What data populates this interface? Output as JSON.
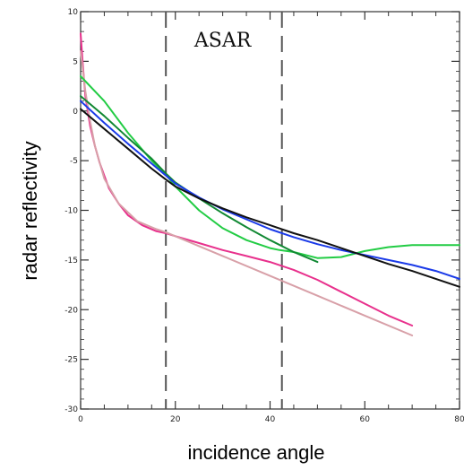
{
  "chart_data": {
    "type": "line",
    "title": "",
    "xlabel": "incidence angle",
    "ylabel": "radar reflectivity",
    "xlim": [
      0,
      80
    ],
    "ylim": [
      -30,
      10
    ],
    "grid": false,
    "xticks": [
      0,
      20,
      40,
      60,
      80
    ],
    "xtick_labels": [
      "0",
      "20",
      "40",
      "60",
      "80"
    ],
    "yticks": [
      10,
      5,
      0,
      -5,
      -10,
      -15,
      -20,
      -25,
      -30
    ],
    "ytick_labels": [
      "10",
      "5",
      "0",
      "-5",
      "-10",
      "-15",
      "-20",
      "-25",
      "-30"
    ],
    "annotations": [
      {
        "text": "ASAR",
        "x": 30,
        "y": 6.5
      }
    ],
    "vlines": [
      18,
      42.5
    ],
    "series": [
      {
        "color": "#e8308c",
        "x": [
          0,
          0.5,
          1,
          2,
          3,
          4,
          5,
          6,
          8,
          10,
          13,
          16,
          18,
          20,
          25,
          30,
          35,
          40,
          45,
          50,
          55,
          60,
          65,
          70
        ],
        "y": [
          7.8,
          4.5,
          1.5,
          -1.5,
          -3.5,
          -5.2,
          -6.5,
          -7.8,
          -9.3,
          -10.5,
          -11.5,
          -12.1,
          -12.3,
          -12.6,
          -13.3,
          -14.0,
          -14.6,
          -15.2,
          -16.0,
          -17.0,
          -18.2,
          -19.4,
          -20.6,
          -21.6
        ]
      },
      {
        "color": "#d8a0a8",
        "x": [
          0,
          1,
          2,
          3,
          5,
          8,
          12,
          16,
          18,
          25,
          30,
          40,
          50,
          60,
          70
        ],
        "y": [
          6.0,
          2.0,
          -1.0,
          -3.5,
          -6.8,
          -9.3,
          -11.1,
          -11.9,
          -12.2,
          -13.6,
          -14.6,
          -16.6,
          -18.6,
          -20.6,
          -22.6
        ]
      },
      {
        "color": "#22cc44",
        "x": [
          0,
          5,
          10,
          15,
          18,
          20,
          25,
          30,
          35,
          40,
          42,
          45,
          50,
          55,
          60,
          65,
          70,
          80
        ],
        "y": [
          3.5,
          1.0,
          -2.2,
          -5.0,
          -6.4,
          -7.6,
          -10.0,
          -11.8,
          -13.0,
          -13.8,
          -14.0,
          -14.2,
          -14.8,
          -14.7,
          -14.1,
          -13.7,
          -13.5,
          -13.5
        ]
      },
      {
        "color": "#118833",
        "x": [
          0,
          5,
          10,
          15,
          18,
          20,
          25,
          30,
          35,
          40,
          45,
          50
        ],
        "y": [
          1.5,
          -0.5,
          -2.7,
          -4.8,
          -6.3,
          -7.2,
          -8.8,
          -10.3,
          -11.7,
          -13.0,
          -14.2,
          -15.2
        ]
      },
      {
        "color": "#1a3ae8",
        "x": [
          0,
          5,
          10,
          15,
          18,
          20,
          25,
          30,
          35,
          40,
          45,
          50,
          55,
          60,
          65,
          70,
          75,
          80
        ],
        "y": [
          1.0,
          -1.2,
          -3.3,
          -5.3,
          -6.5,
          -7.3,
          -8.7,
          -9.9,
          -10.9,
          -11.9,
          -12.7,
          -13.4,
          -14.0,
          -14.5,
          -15.0,
          -15.5,
          -16.1,
          -16.9
        ]
      },
      {
        "color": "#111111",
        "x": [
          0,
          5,
          10,
          15,
          18,
          20,
          25,
          30,
          35,
          40,
          45,
          50,
          55,
          60,
          65,
          70,
          75,
          80
        ],
        "y": [
          0.2,
          -1.8,
          -3.8,
          -5.8,
          -6.9,
          -7.6,
          -8.8,
          -9.8,
          -10.7,
          -11.5,
          -12.3,
          -13.0,
          -13.8,
          -14.6,
          -15.4,
          -16.1,
          -16.9,
          -17.7
        ]
      }
    ]
  }
}
